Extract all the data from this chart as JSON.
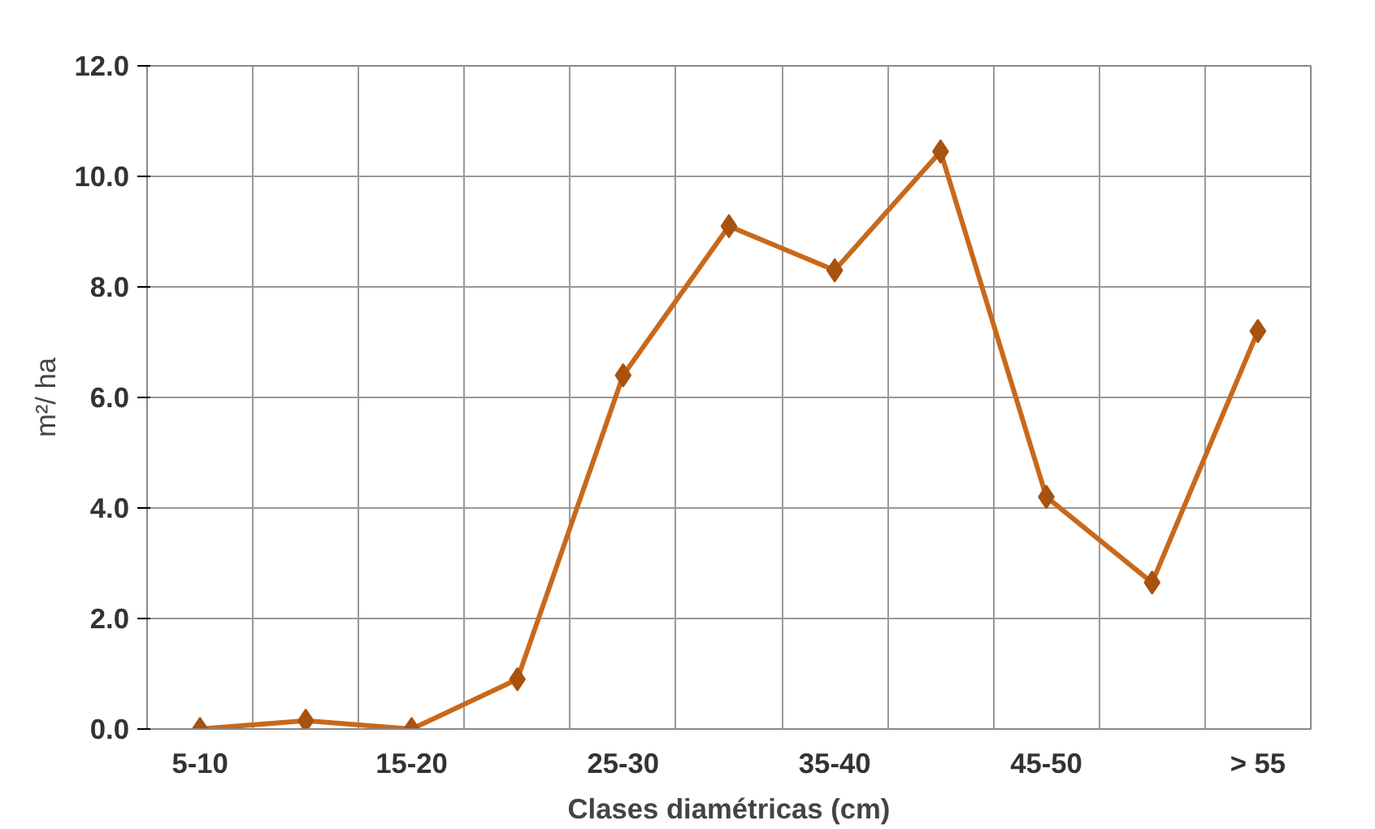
{
  "chart_data": {
    "type": "line",
    "xlabel": "Clases diamétricas (cm)",
    "ylabel": "m²/ ha",
    "categories": [
      "5-10",
      null,
      "15-20",
      null,
      "25-30",
      null,
      "35-40",
      null,
      "45-50",
      null,
      "> 55"
    ],
    "series": [
      {
        "color": "#c8691c",
        "values": [
          0.0,
          0.15,
          0.0,
          0.9,
          6.4,
          9.1,
          8.3,
          10.45,
          4.2,
          2.65,
          7.2
        ]
      }
    ],
    "ylim": [
      0,
      12
    ],
    "yticks": [
      {
        "value": 0,
        "label": "0.0"
      },
      {
        "value": 2,
        "label": "2.0"
      },
      {
        "value": 4,
        "label": "4.0"
      },
      {
        "value": 6,
        "label": "6.0"
      },
      {
        "value": 8,
        "label": "8.0"
      },
      {
        "value": 10,
        "label": "10.0"
      },
      {
        "value": 12,
        "label": "12.0"
      }
    ],
    "grid": true,
    "marker": "diamond",
    "line_style": "solid"
  }
}
